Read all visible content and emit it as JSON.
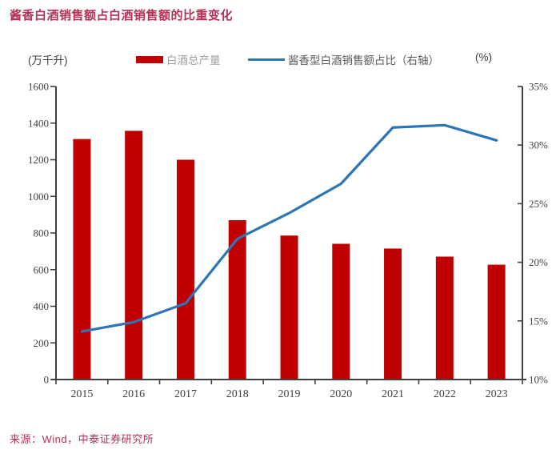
{
  "title": "酱香白酒销售额占白酒销售额的比重变化",
  "legend": {
    "bar_label": "白酒总产量",
    "line_label": "酱香型白酒销售额占比（右轴）"
  },
  "axes": {
    "left_unit": "(万千升)",
    "right_unit": "(%)"
  },
  "source": "来源：Wind，中泰证券研究所",
  "colors": {
    "bar": "#C00000",
    "line": "#2E75B6",
    "title_red": "#B43155",
    "axis": "#404040",
    "tick_label": "#404040"
  },
  "chart_data": {
    "type": "bar+line combo",
    "title": "酱香白酒销售额占白酒销售额的比重变化",
    "categories": [
      "2015",
      "2016",
      "2017",
      "2018",
      "2019",
      "2020",
      "2021",
      "2022",
      "2023"
    ],
    "series": [
      {
        "name": "白酒总产量",
        "type": "bar",
        "axis": "left",
        "unit": "万千升",
        "values": [
          1313,
          1358,
          1200,
          870,
          786,
          741,
          715,
          671,
          627
        ]
      },
      {
        "name": "酱香型白酒销售额占比（右轴）",
        "type": "line",
        "axis": "right",
        "unit": "%",
        "values": [
          14.1,
          14.9,
          16.5,
          22.0,
          24.2,
          26.7,
          31.5,
          31.7,
          30.4
        ]
      }
    ],
    "left_axis": {
      "label": "(万千升)",
      "min": 0,
      "max": 1600,
      "step": 200,
      "suffix": ""
    },
    "right_axis": {
      "label": "(%)",
      "min": 10,
      "max": 35,
      "step": 5,
      "suffix": "%"
    },
    "legend_position": "top",
    "grid": false
  }
}
